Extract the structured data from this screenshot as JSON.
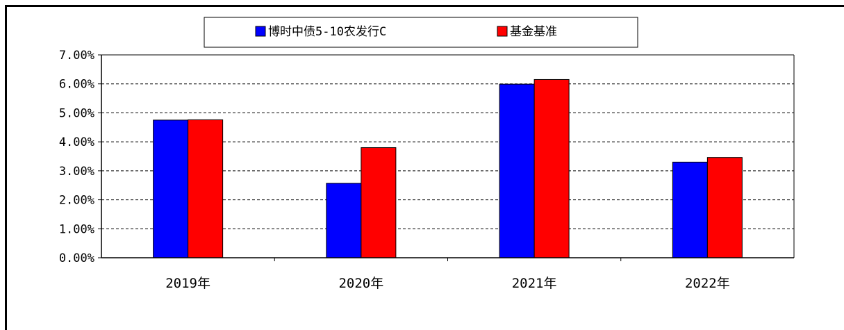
{
  "chart_data": {
    "type": "bar",
    "categories": [
      "2019年",
      "2020年",
      "2021年",
      "2022年"
    ],
    "series": [
      {
        "name": "博时中债5-10农发行C",
        "color": "#0000ff",
        "values": [
          4.75,
          2.57,
          5.99,
          3.3
        ]
      },
      {
        "name": "基金基准",
        "color": "#ff0000",
        "values": [
          4.76,
          3.8,
          6.15,
          3.46
        ]
      }
    ],
    "yticks": [
      "0.00%",
      "1.00%",
      "2.00%",
      "3.00%",
      "4.00%",
      "5.00%",
      "6.00%",
      "7.00%"
    ],
    "ylim": [
      0,
      7
    ],
    "grid": true,
    "legend_position": "top-center"
  }
}
